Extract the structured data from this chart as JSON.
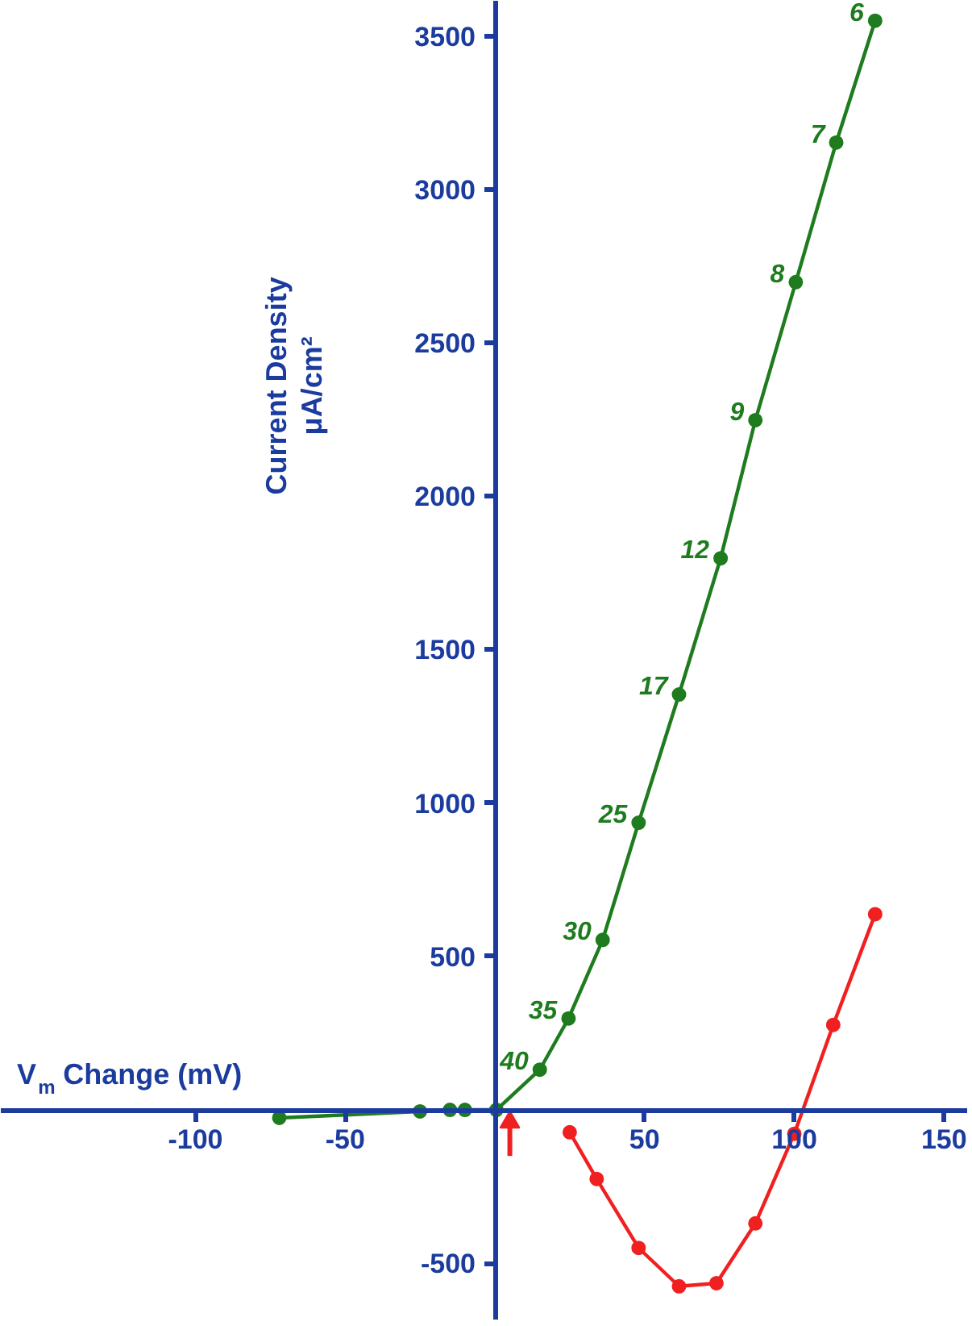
{
  "chart_data": {
    "type": "line",
    "xlabel": "V$_{m}$ Change (mV)",
    "ylabel": "Current Density\nμA/cm²",
    "marker": "circle",
    "line_style": "solid",
    "grid": false,
    "xlim": [
      -165,
      158
    ],
    "ylim": [
      -686,
      3615
    ],
    "xticks": [
      -100,
      -50,
      50,
      100,
      150
    ],
    "yticks": [
      -500,
      500,
      1000,
      1500,
      2000,
      2500,
      3000,
      3500
    ],
    "series": [
      {
        "color": "#1e7b1e",
        "x": [
          -72,
          -25,
          -15,
          -10,
          0.5,
          15,
          24.6,
          36,
          48,
          61.5,
          75.4,
          87,
          100.5,
          114,
          127
        ],
        "values": [
          -26,
          -5,
          0,
          0,
          0,
          131,
          298,
          554,
          936,
          1354,
          1798,
          2248,
          2698,
          3153,
          3550
        ]
      },
      {
        "color": "#f02020",
        "x": [
          25,
          34,
          48,
          61.5,
          74,
          87,
          100,
          113,
          127
        ],
        "values": [
          -73,
          -225,
          -450,
          -575,
          -565,
          -370,
          -78,
          277,
          638
        ]
      }
    ],
    "annotations": [
      {
        "text": "40",
        "x": 15,
        "y": 131
      },
      {
        "text": "35",
        "x": 24.6,
        "y": 298
      },
      {
        "text": "30",
        "x": 36,
        "y": 554
      },
      {
        "text": "25",
        "x": 48,
        "y": 936
      },
      {
        "text": "17",
        "x": 61.5,
        "y": 1354
      },
      {
        "text": "12",
        "x": 75.4,
        "y": 1798
      },
      {
        "text": "9",
        "x": 87,
        "y": 2248
      },
      {
        "text": "8",
        "x": 100.5,
        "y": 2698
      },
      {
        "text": "7",
        "x": 114,
        "y": 3153
      },
      {
        "text": "6",
        "x": 127,
        "y": 3550
      }
    ]
  }
}
